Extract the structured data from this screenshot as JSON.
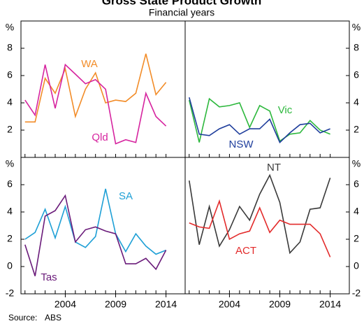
{
  "title": "Gross State Product Growth",
  "subtitle": "Financial years",
  "source_label": "Source:",
  "source": "ABS",
  "chart_data": [
    {
      "type": "line",
      "y_label": "%",
      "axis_side": "left",
      "x": [
        2000,
        2001,
        2002,
        2003,
        2004,
        2005,
        2006,
        2007,
        2008,
        2009,
        2010,
        2011,
        2012,
        2013,
        2014
      ],
      "xlim": [
        1999.6,
        2015.9
      ],
      "xticks": [
        2004,
        2009,
        2014
      ],
      "ylim": [
        0,
        10
      ],
      "yticks": [
        2,
        4,
        6,
        8
      ],
      "series": [
        {
          "name": "WA",
          "color": "#f28c28",
          "values": [
            2.6,
            2.6,
            5.8,
            4.7,
            6.5,
            3.0,
            5.0,
            6.2,
            4.0,
            4.2,
            4.1,
            4.7,
            7.6,
            4.6,
            5.5
          ]
        },
        {
          "name": "Qld",
          "color": "#d6249f",
          "values": [
            4.2,
            3.1,
            6.8,
            3.6,
            6.8,
            6.1,
            5.4,
            5.7,
            5.0,
            1.0,
            1.3,
            1.1,
            4.7,
            3.0,
            2.3
          ]
        }
      ]
    },
    {
      "type": "line",
      "y_label": "%",
      "axis_side": "right",
      "x": [
        2000,
        2001,
        2002,
        2003,
        2004,
        2005,
        2006,
        2007,
        2008,
        2009,
        2010,
        2011,
        2012,
        2013,
        2014
      ],
      "xlim": [
        1999.6,
        2015.9
      ],
      "xticks": [
        2004,
        2009,
        2014
      ],
      "ylim": [
        0,
        10
      ],
      "yticks": [
        2,
        4,
        6,
        8
      ],
      "series": [
        {
          "name": "Vic",
          "color": "#2db83d",
          "values": [
            4.2,
            1.1,
            4.3,
            3.7,
            3.8,
            4.0,
            2.2,
            3.8,
            3.4,
            1.2,
            1.7,
            1.8,
            2.7,
            2.0,
            1.7
          ]
        },
        {
          "name": "NSW",
          "color": "#1f3e9c",
          "values": [
            4.4,
            1.7,
            1.6,
            2.1,
            2.4,
            1.7,
            2.1,
            2.1,
            2.8,
            1.1,
            1.8,
            2.4,
            2.5,
            1.8,
            2.1
          ]
        }
      ]
    },
    {
      "type": "line",
      "y_label": "%",
      "axis_side": "left",
      "x": [
        2000,
        2001,
        2002,
        2003,
        2004,
        2005,
        2006,
        2007,
        2008,
        2009,
        2010,
        2011,
        2012,
        2013,
        2014
      ],
      "xlim": [
        1999.6,
        2015.9
      ],
      "xticks": [
        2004,
        2009,
        2014
      ],
      "ylim": [
        -2,
        8
      ],
      "yticks": [
        -2,
        0,
        2,
        4,
        6
      ],
      "series": [
        {
          "name": "SA",
          "color": "#1fa0d6",
          "values": [
            2.0,
            2.5,
            4.2,
            2.1,
            4.4,
            1.8,
            1.4,
            2.2,
            5.7,
            2.4,
            1.1,
            2.4,
            1.5,
            0.9,
            1.2
          ]
        },
        {
          "name": "Tas",
          "color": "#6a1b7a",
          "values": [
            1.6,
            -0.7,
            3.7,
            4.1,
            5.2,
            1.8,
            2.7,
            2.9,
            2.6,
            2.4,
            0.2,
            0.2,
            0.6,
            -0.2,
            1.2
          ]
        }
      ]
    },
    {
      "type": "line",
      "y_label": "%",
      "axis_side": "right",
      "x": [
        2000,
        2001,
        2002,
        2003,
        2004,
        2005,
        2006,
        2007,
        2008,
        2009,
        2010,
        2011,
        2012,
        2013,
        2014
      ],
      "xlim": [
        1999.6,
        2015.9
      ],
      "xticks": [
        2004,
        2009,
        2014
      ],
      "ylim": [
        -2,
        8
      ],
      "yticks": [
        -2,
        0,
        2,
        4,
        6
      ],
      "series": [
        {
          "name": "NT",
          "color": "#3a3a3a",
          "values": [
            6.3,
            1.6,
            4.4,
            1.5,
            2.7,
            4.4,
            3.4,
            5.3,
            6.7,
            4.7,
            1.0,
            1.8,
            4.2,
            4.3,
            6.5
          ]
        },
        {
          "name": "ACT",
          "color": "#e32b2b",
          "values": [
            3.2,
            2.9,
            2.8,
            4.8,
            2.0,
            2.4,
            2.6,
            4.3,
            2.5,
            3.4,
            3.1,
            3.1,
            3.1,
            2.4,
            0.7
          ]
        }
      ]
    }
  ]
}
